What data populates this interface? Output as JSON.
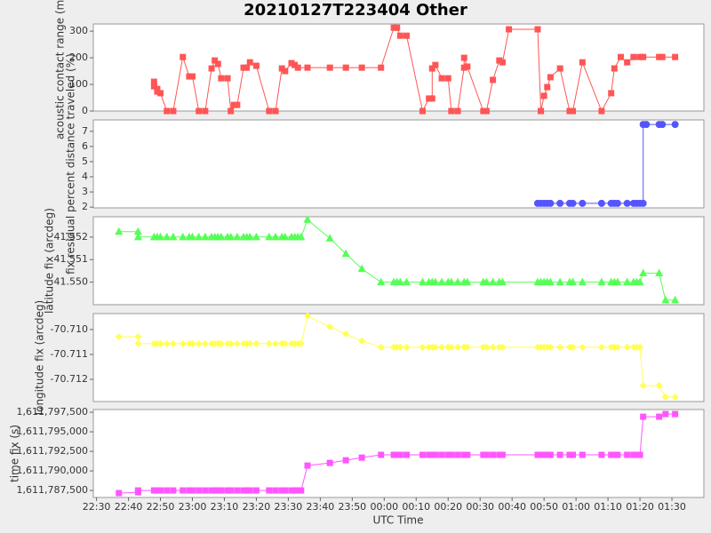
{
  "chart_data": [
    {
      "type": "line",
      "title": "20210127T223404 Other",
      "ylabel": "acoustic contact range (m)",
      "color": "#ff5555",
      "marker": "square",
      "xlim": [
        "22:29",
        "01:40"
      ],
      "ylim": [
        0,
        327
      ],
      "yticks": [
        0,
        100,
        200,
        300
      ],
      "x": [
        "22:48",
        "22:48",
        "22:49",
        "22:49",
        "22:50",
        "22:52",
        "22:54",
        "22:57",
        "22:59",
        "23:00",
        "23:02",
        "23:04",
        "23:06",
        "23:07",
        "23:08",
        "23:09",
        "23:11",
        "23:12",
        "23:13",
        "23:14",
        "23:16",
        "23:17",
        "23:18",
        "23:20",
        "23:24",
        "23:26",
        "23:28",
        "23:29",
        "23:31",
        "23:32",
        "23:33",
        "23:36",
        "23:43",
        "23:48",
        "23:53",
        "23:59",
        "00:03",
        "00:04",
        "00:05",
        "00:07",
        "00:12",
        "00:14",
        "00:15",
        "00:15",
        "00:16",
        "00:18",
        "00:20",
        "00:21",
        "00:23",
        "00:25",
        "00:25",
        "00:26",
        "00:31",
        "00:32",
        "00:34",
        "00:36",
        "00:37",
        "00:39",
        "00:48",
        "00:49",
        "00:49",
        "00:50",
        "00:51",
        "00:52",
        "00:55",
        "00:58",
        "00:59",
        "01:02",
        "01:08",
        "01:11",
        "01:12",
        "01:14",
        "01:16",
        "01:18",
        "01:20",
        "01:21",
        "01:26",
        "01:27",
        "01:31"
      ],
      "values": [
        110,
        93,
        83,
        73,
        67,
        0,
        0,
        203,
        130,
        130,
        0,
        0,
        160,
        190,
        177,
        123,
        123,
        0,
        23,
        23,
        163,
        163,
        183,
        170,
        0,
        0,
        160,
        150,
        180,
        173,
        163,
        163,
        163,
        163,
        163,
        163,
        313,
        313,
        283,
        283,
        0,
        47,
        47,
        160,
        173,
        123,
        123,
        0,
        0,
        163,
        200,
        167,
        0,
        0,
        117,
        190,
        183,
        307,
        307,
        0,
        0,
        57,
        90,
        127,
        160,
        0,
        0,
        183,
        0,
        67,
        160,
        203,
        183,
        203,
        203,
        203,
        203,
        203,
        203
      ]
    },
    {
      "type": "line",
      "ylabel": "fix residual percent distance traveled (%)",
      "color": "#5555ff",
      "marker": "circle",
      "xlim": [
        "22:29",
        "01:40"
      ],
      "ylim": [
        1.95,
        7.75
      ],
      "yticks": [
        2,
        3,
        4,
        5,
        6,
        7
      ],
      "x": [
        "00:48",
        "00:49",
        "00:50",
        "00:51",
        "00:52",
        "00:55",
        "00:58",
        "00:59",
        "01:02",
        "01:08",
        "01:11",
        "01:12",
        "01:13",
        "01:16",
        "01:18",
        "01:19",
        "01:20",
        "01:21",
        "01:21",
        "01:22",
        "01:26",
        "01:27",
        "01:31"
      ],
      "values": [
        2.25,
        2.25,
        2.25,
        2.25,
        2.25,
        2.25,
        2.25,
        2.25,
        2.25,
        2.25,
        2.25,
        2.25,
        2.25,
        2.25,
        2.25,
        2.25,
        2.25,
        2.25,
        7.45,
        7.45,
        7.45,
        7.45,
        7.45
      ]
    },
    {
      "type": "line",
      "ylabel": "latitude fix (arcdeg)",
      "color": "#55ff55",
      "marker": "triangle",
      "xlim": [
        "22:29",
        "01:40"
      ],
      "ylim": [
        41.549,
        41.5529
      ],
      "yticks": [
        41.552,
        41.551,
        {
          "value": 41.55,
          "label": "41.550"
        }
      ],
      "x": [
        "22:37",
        "22:43",
        "22:43",
        "22:48",
        "22:49",
        "22:50",
        "22:52",
        "22:54",
        "22:57",
        "22:59",
        "23:00",
        "23:02",
        "23:04",
        "23:06",
        "23:07",
        "23:08",
        "23:09",
        "23:11",
        "23:12",
        "23:14",
        "23:16",
        "23:17",
        "23:18",
        "23:20",
        "23:24",
        "23:26",
        "23:28",
        "23:29",
        "23:31",
        "23:32",
        "23:33",
        "23:34",
        "23:36",
        "23:43",
        "23:48",
        "23:53",
        "23:59",
        "00:03",
        "00:04",
        "00:05",
        "00:07",
        "00:12",
        "00:14",
        "00:15",
        "00:16",
        "00:18",
        "00:20",
        "00:21",
        "00:23",
        "00:25",
        "00:26",
        "00:31",
        "00:32",
        "00:34",
        "00:36",
        "00:37",
        "00:48",
        "00:49",
        "00:50",
        "00:51",
        "00:52",
        "00:55",
        "00:58",
        "00:59",
        "01:02",
        "01:08",
        "01:11",
        "01:12",
        "01:13",
        "01:16",
        "01:18",
        "01:19",
        "01:20",
        "01:21",
        "01:26",
        "01:28",
        "01:31"
      ],
      "values": [
        41.55224,
        41.55224,
        41.552,
        41.552,
        41.552,
        41.552,
        41.552,
        41.552,
        41.552,
        41.552,
        41.552,
        41.552,
        41.552,
        41.552,
        41.552,
        41.552,
        41.552,
        41.552,
        41.552,
        41.552,
        41.552,
        41.552,
        41.552,
        41.552,
        41.552,
        41.552,
        41.552,
        41.552,
        41.552,
        41.552,
        41.552,
        41.552,
        41.55277,
        41.55194,
        41.55126,
        41.55059,
        41.55,
        41.55,
        41.55,
        41.55,
        41.55,
        41.55,
        41.55,
        41.55,
        41.55,
        41.55,
        41.55,
        41.55,
        41.55,
        41.55,
        41.55,
        41.55,
        41.55,
        41.55,
        41.55,
        41.55,
        41.55,
        41.55,
        41.55,
        41.55,
        41.55,
        41.55,
        41.55,
        41.55,
        41.55,
        41.55,
        41.55,
        41.55,
        41.55,
        41.55,
        41.55,
        41.55,
        41.55,
        41.5504,
        41.5504,
        41.5492,
        41.5492
      ]
    },
    {
      "type": "line",
      "ylabel": "longitude fix (arcdeg)",
      "color": "#ffff55",
      "marker": "diamond",
      "xlim": [
        "22:29",
        "01:40"
      ],
      "ylim": [
        -70.71289,
        -70.70936
      ],
      "yticks": [
        {
          "value": -70.71,
          "label": "-70.710"
        },
        -70.711,
        -70.712
      ],
      "x": [
        "22:37",
        "22:43",
        "22:43",
        "22:48",
        "22:49",
        "22:50",
        "22:52",
        "22:54",
        "22:57",
        "22:59",
        "23:00",
        "23:02",
        "23:04",
        "23:06",
        "23:07",
        "23:08",
        "23:09",
        "23:11",
        "23:12",
        "23:14",
        "23:16",
        "23:17",
        "23:18",
        "23:20",
        "23:24",
        "23:26",
        "23:28",
        "23:29",
        "23:31",
        "23:32",
        "23:33",
        "23:34",
        "23:36",
        "23:43",
        "23:48",
        "23:53",
        "23:59",
        "00:03",
        "00:04",
        "00:05",
        "00:07",
        "00:12",
        "00:14",
        "00:15",
        "00:16",
        "00:18",
        "00:20",
        "00:21",
        "00:23",
        "00:25",
        "00:26",
        "00:31",
        "00:32",
        "00:34",
        "00:36",
        "00:37",
        "00:48",
        "00:49",
        "00:50",
        "00:51",
        "00:52",
        "00:55",
        "00:58",
        "00:59",
        "01:02",
        "01:08",
        "01:11",
        "01:12",
        "01:13",
        "01:16",
        "01:18",
        "01:19",
        "01:20",
        "01:21",
        "01:26",
        "01:28",
        "01:31"
      ],
      "values": [
        -70.71029,
        -70.71029,
        -70.71057,
        -70.71057,
        -70.71057,
        -70.71057,
        -70.71057,
        -70.71057,
        -70.71057,
        -70.71057,
        -70.71057,
        -70.71057,
        -70.71057,
        -70.71057,
        -70.71057,
        -70.71057,
        -70.71057,
        -70.71057,
        -70.71057,
        -70.71057,
        -70.71057,
        -70.71057,
        -70.71057,
        -70.71057,
        -70.71057,
        -70.71057,
        -70.71057,
        -70.71057,
        -70.71057,
        -70.71057,
        -70.71057,
        -70.71057,
        -70.70946,
        -70.70989,
        -70.71018,
        -70.71046,
        -70.71071,
        -70.71071,
        -70.71071,
        -70.71071,
        -70.71071,
        -70.71071,
        -70.71071,
        -70.71071,
        -70.71071,
        -70.71071,
        -70.71071,
        -70.71071,
        -70.71071,
        -70.71071,
        -70.71071,
        -70.71071,
        -70.71071,
        -70.71071,
        -70.71071,
        -70.71071,
        -70.71071,
        -70.71071,
        -70.71071,
        -70.71071,
        -70.71071,
        -70.71071,
        -70.71071,
        -70.71071,
        -70.71071,
        -70.71071,
        -70.71071,
        -70.71071,
        -70.71071,
        -70.71071,
        -70.71071,
        -70.71071,
        -70.71071,
        -70.71225,
        -70.71225,
        -70.71271,
        -70.71271
      ]
    },
    {
      "type": "line",
      "ylabel": "time fix (s)",
      "xlabel": "UTC Time",
      "color": "#ff55ff",
      "marker": "square",
      "xlim": [
        "22:29",
        "01:40"
      ],
      "ylim": [
        1611786600,
        1611797850
      ],
      "yticks": [
        {
          "value": 1611797500,
          "label": "1,611,797,500"
        },
        {
          "value": 1611795000,
          "label": "1,611,795,000"
        },
        {
          "value": 1611792500,
          "label": "1,611,792,500"
        },
        {
          "value": 1611790000,
          "label": "1,611,790,000"
        },
        {
          "value": 1611787500,
          "label": "1,611,787,500"
        }
      ],
      "xticks": [
        "22:30",
        "22:40",
        "22:50",
        "23:00",
        "23:10",
        "23:20",
        "23:30",
        "23:40",
        "23:50",
        "00:00",
        "00:10",
        "00:20",
        "00:30",
        "00:40",
        "00:50",
        "01:00",
        "01:10",
        "01:20",
        "01:30"
      ],
      "x": [
        "22:37",
        "22:43",
        "22:43",
        "22:48",
        "22:49",
        "22:50",
        "22:52",
        "22:54",
        "22:57",
        "22:59",
        "23:00",
        "23:02",
        "23:04",
        "23:06",
        "23:07",
        "23:08",
        "23:09",
        "23:11",
        "23:12",
        "23:14",
        "23:16",
        "23:17",
        "23:18",
        "23:20",
        "23:24",
        "23:26",
        "23:28",
        "23:29",
        "23:31",
        "23:32",
        "23:33",
        "23:34",
        "23:36",
        "23:43",
        "23:48",
        "23:53",
        "23:59",
        "00:03",
        "00:04",
        "00:05",
        "00:07",
        "00:12",
        "00:14",
        "00:15",
        "00:16",
        "00:18",
        "00:20",
        "00:21",
        "00:23",
        "00:25",
        "00:26",
        "00:31",
        "00:32",
        "00:34",
        "00:36",
        "00:37",
        "00:48",
        "00:49",
        "00:50",
        "00:51",
        "00:52",
        "00:55",
        "00:58",
        "00:59",
        "01:02",
        "01:08",
        "01:11",
        "01:12",
        "01:13",
        "01:16",
        "01:18",
        "01:19",
        "01:20",
        "01:21",
        "01:26",
        "01:28",
        "01:31"
      ],
      "values": [
        1611787160,
        1611787270,
        1611787500,
        1611787500,
        1611787500,
        1611787500,
        1611787500,
        1611787500,
        1611787500,
        1611787500,
        1611787500,
        1611787500,
        1611787500,
        1611787500,
        1611787500,
        1611787500,
        1611787500,
        1611787500,
        1611787500,
        1611787500,
        1611787500,
        1611787500,
        1611787500,
        1611787500,
        1611787500,
        1611787500,
        1611787500,
        1611787500,
        1611787500,
        1611787500,
        1611787500,
        1611787500,
        1611790680,
        1611791020,
        1611791360,
        1611791700,
        1611792050,
        1611792050,
        1611792050,
        1611792050,
        1611792050,
        1611792050,
        1611792050,
        1611792050,
        1611792050,
        1611792050,
        1611792050,
        1611792050,
        1611792050,
        1611792050,
        1611792050,
        1611792050,
        1611792050,
        1611792050,
        1611792050,
        1611792050,
        1611792050,
        1611792050,
        1611792050,
        1611792050,
        1611792050,
        1611792050,
        1611792050,
        1611792050,
        1611792050,
        1611792050,
        1611792050,
        1611792050,
        1611792050,
        1611792050,
        1611792050,
        1611792050,
        1611792050,
        1611796930,
        1611796930,
        1611797270,
        1611797270
      ]
    }
  ]
}
